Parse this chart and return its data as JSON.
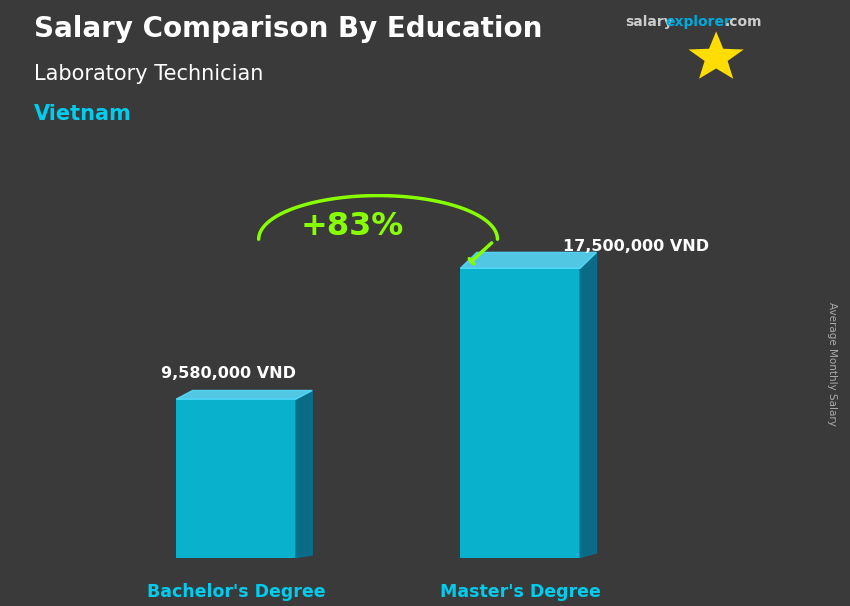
{
  "title": "Salary Comparison By Education",
  "subtitle": "Laboratory Technician",
  "country": "Vietnam",
  "categories": [
    "Bachelor's Degree",
    "Master's Degree"
  ],
  "values": [
    9580000,
    17500000
  ],
  "value_labels": [
    "9,580,000 VND",
    "17,500,000 VND"
  ],
  "percent_change": "+83%",
  "bar_color_face": "#00CCEE",
  "bar_color_dark": "#007799",
  "bar_color_top": "#55DDFF",
  "bar_alpha": 0.82,
  "bg_color": "#3a3a3a",
  "header_bg": "#4a4a4a",
  "title_color": "#FFFFFF",
  "subtitle_color": "#FFFFFF",
  "country_color": "#00CCEE",
  "label_color": "#FFFFFF",
  "xticklabel_color": "#00CCEE",
  "percent_color": "#88FF00",
  "arrow_color": "#88FF00",
  "watermark_color1": "#cccccc",
  "watermark_color2": "#00AADD",
  "side_label": "Average Monthly Salary",
  "flag_bg": "#DA251D",
  "star_color": "#FFDD00",
  "ylim": [
    0,
    22000000
  ],
  "bar_positions": [
    0.27,
    0.65
  ],
  "bar_width": 0.16
}
